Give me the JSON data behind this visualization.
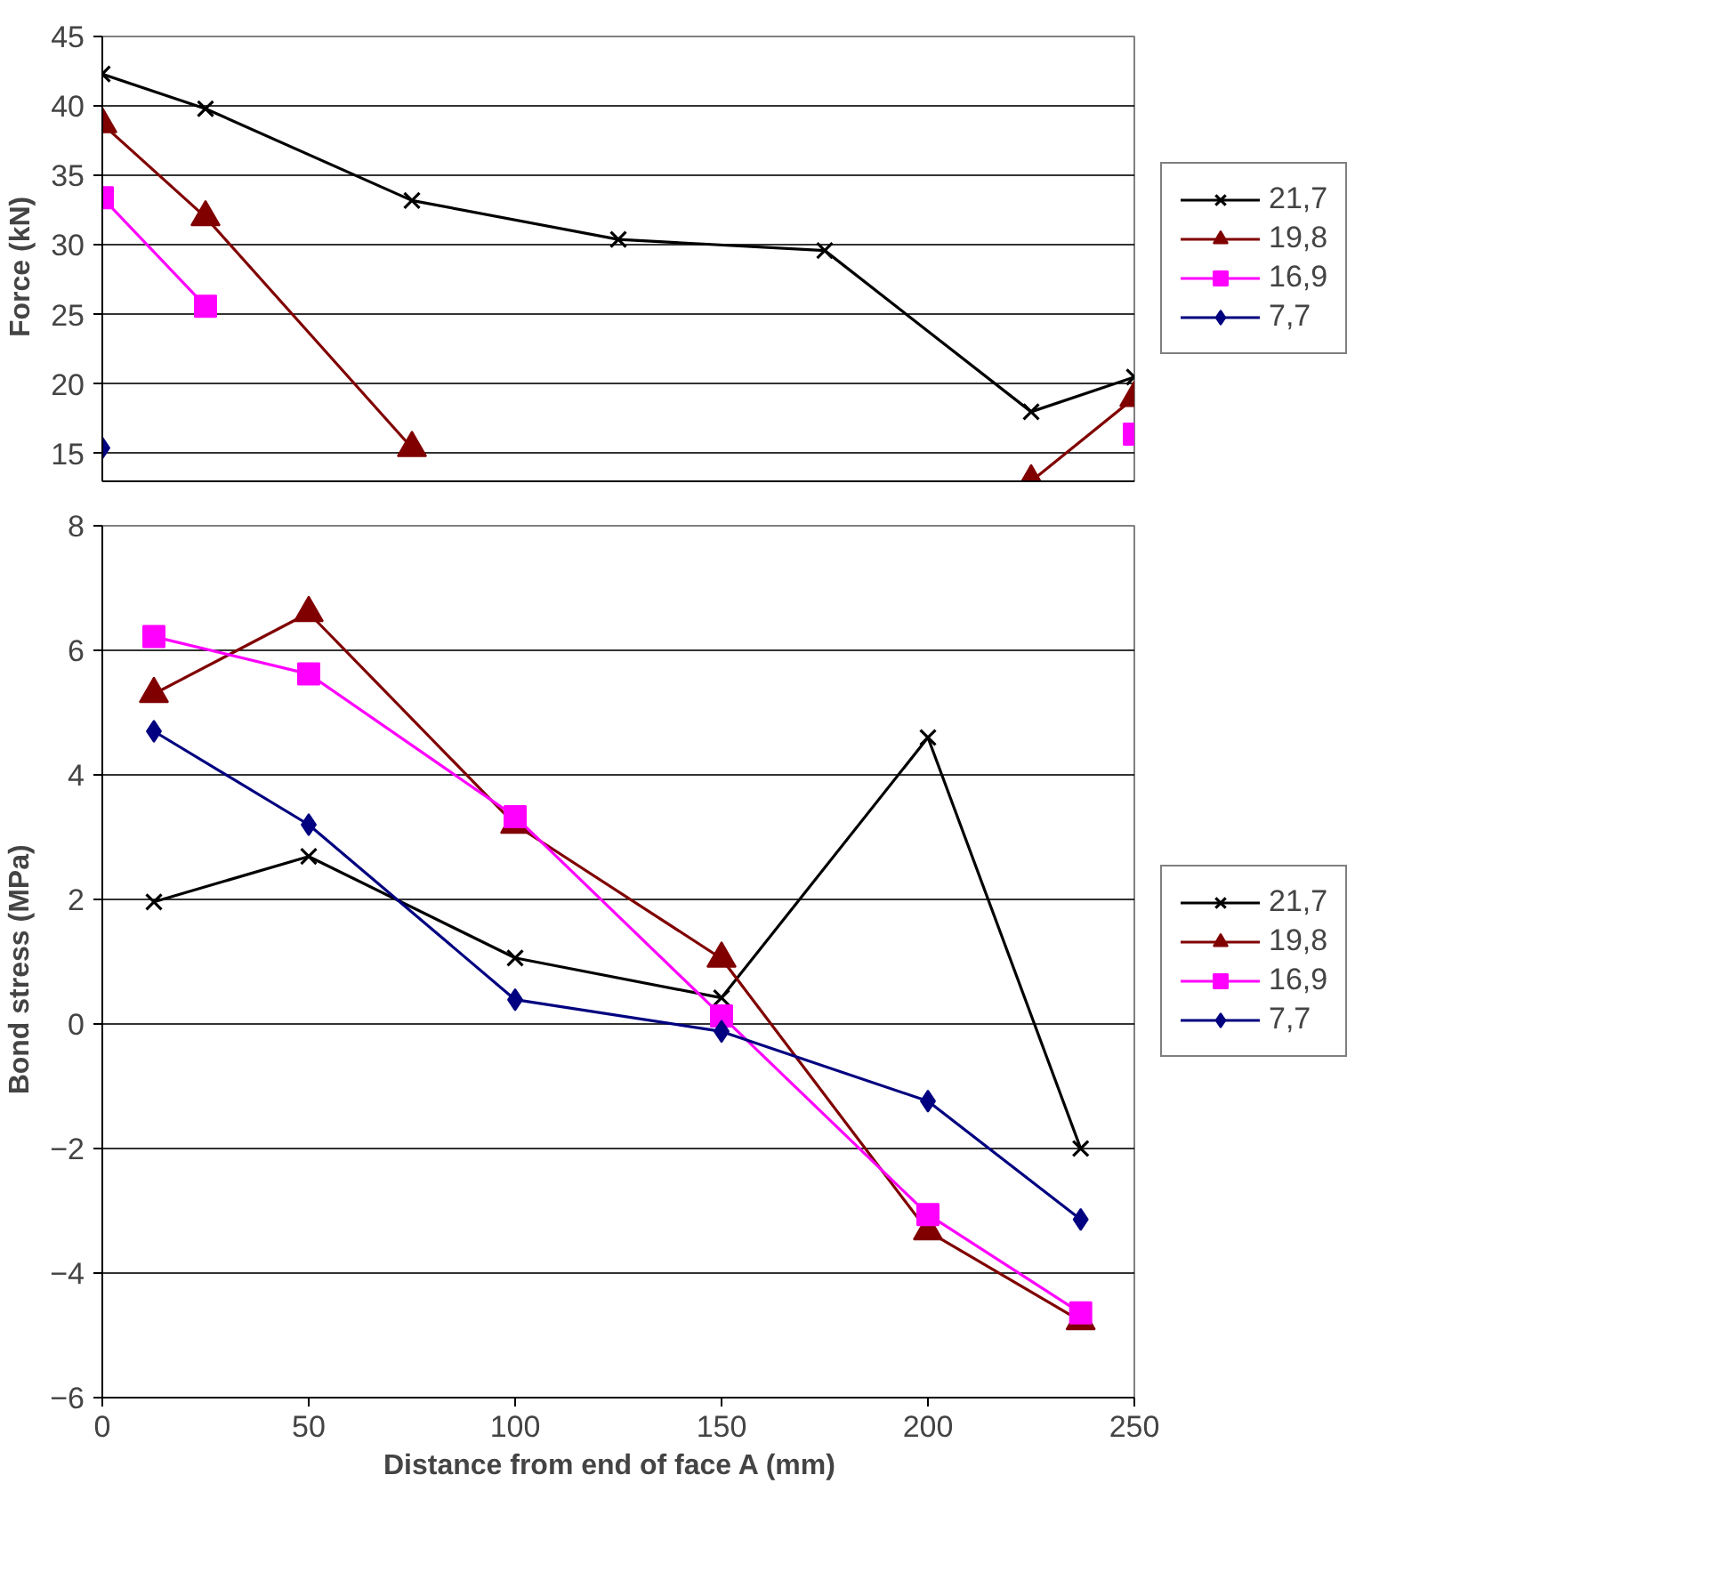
{
  "chart_data": [
    {
      "type": "line",
      "ylabel": "Force   (kN)",
      "x": [
        0,
        25,
        75,
        125,
        175,
        225,
        250
      ],
      "xlim": [
        0,
        250
      ],
      "ylim": [
        13,
        45
      ],
      "yticks": [
        15,
        20,
        25,
        30,
        35,
        40,
        45
      ],
      "tick_labels": "y",
      "grid": "y",
      "legend": "right",
      "series": [
        {
          "name": "21,7",
          "color": "#000000",
          "marker": "cross",
          "values": [
            42.3,
            39.8,
            33.2,
            30.4,
            29.6,
            18.0,
            20.5
          ]
        },
        {
          "name": "19,8",
          "color": "#800000",
          "marker": "triangle",
          "values": [
            38.7,
            32.0,
            15.4,
            null,
            null,
            13.0,
            19.0
          ]
        },
        {
          "name": "16,9",
          "color": "#ff00ff",
          "marker": "square",
          "values": [
            33.4,
            25.6,
            null,
            null,
            null,
            null,
            16.4
          ]
        },
        {
          "name": "7,7",
          "color": "#000080",
          "marker": "diamond",
          "values": [
            15.4,
            null,
            null,
            null,
            null,
            null,
            null
          ]
        }
      ]
    },
    {
      "type": "line",
      "xlabel": "Distance from end of face A   (mm)",
      "ylabel": "Bond stress   (MPa)",
      "x": [
        12.5,
        50,
        100,
        150,
        200,
        237
      ],
      "xlim": [
        0,
        250
      ],
      "xticks": [
        0,
        50,
        100,
        150,
        200,
        250
      ],
      "ylim": [
        -6,
        8
      ],
      "yticks": [
        -6,
        -4,
        -2,
        0,
        2,
        4,
        6,
        8
      ],
      "grid": "y",
      "legend": "right",
      "series": [
        {
          "name": "21,7",
          "color": "#000000",
          "marker": "cross",
          "values": [
            1.96,
            2.69,
            1.06,
            0.42,
            4.6,
            -2.0
          ]
        },
        {
          "name": "19,8",
          "color": "#800000",
          "marker": "triangle",
          "values": [
            5.3,
            6.6,
            3.2,
            1.05,
            -3.33,
            -4.77
          ]
        },
        {
          "name": "16,9",
          "color": "#ff00ff",
          "marker": "square",
          "values": [
            6.22,
            5.62,
            3.33,
            0.13,
            -3.06,
            -4.64
          ]
        },
        {
          "name": "7,7",
          "color": "#000080",
          "marker": "diamond",
          "values": [
            4.7,
            3.2,
            0.39,
            -0.12,
            -1.24,
            -3.14
          ]
        }
      ]
    }
  ]
}
